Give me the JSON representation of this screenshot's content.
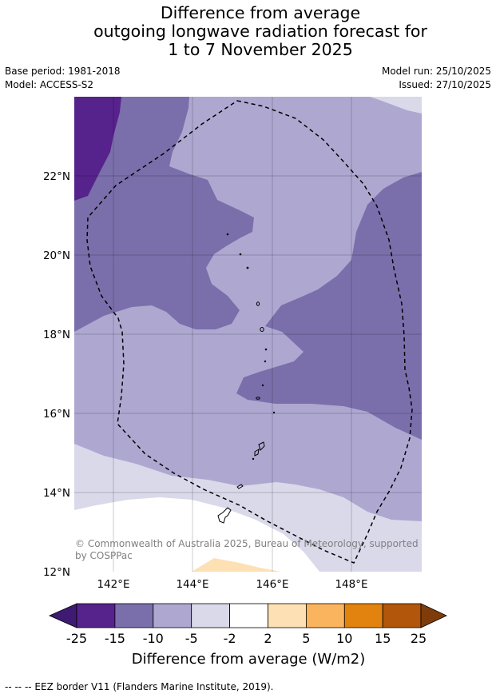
{
  "title_lines": [
    "Difference from average",
    "outgoing longwave radiation forecast for",
    "1 to 7 November 2025"
  ],
  "meta": {
    "base_period": "Base period: 1981-2018",
    "model": "Model: ACCESS-S2",
    "model_run": "Model run: 25/10/2025",
    "issued": "Issued: 27/10/2025"
  },
  "map": {
    "lat_ticks": [
      "22°N",
      "20°N",
      "18°N",
      "16°N",
      "14°N",
      "12°N"
    ],
    "lon_ticks": [
      "142°E",
      "144°E",
      "146°E",
      "148°E"
    ],
    "copyright": [
      "© Commonwealth of Australia 2025, Bureau of Meteorology, supported",
      "by COSPPac"
    ]
  },
  "colorbar": {
    "labels": [
      "-25",
      "-15",
      "-10",
      "-5",
      "-2",
      "2",
      "5",
      "10",
      "15",
      "25"
    ],
    "colors": [
      "#3f1a72",
      "#56228c",
      "#7b6fab",
      "#aea8d1",
      "#d9d9ea",
      "#ffffff",
      "#fde0b4",
      "#fbb45e",
      "#e2820f",
      "#b1560a",
      "#7f3c0b"
    ],
    "title": "Difference from average (W/m2)"
  },
  "footnote": "--  --  -- EEZ border V11 (Flanders Marine Institute, 2019)."
}
